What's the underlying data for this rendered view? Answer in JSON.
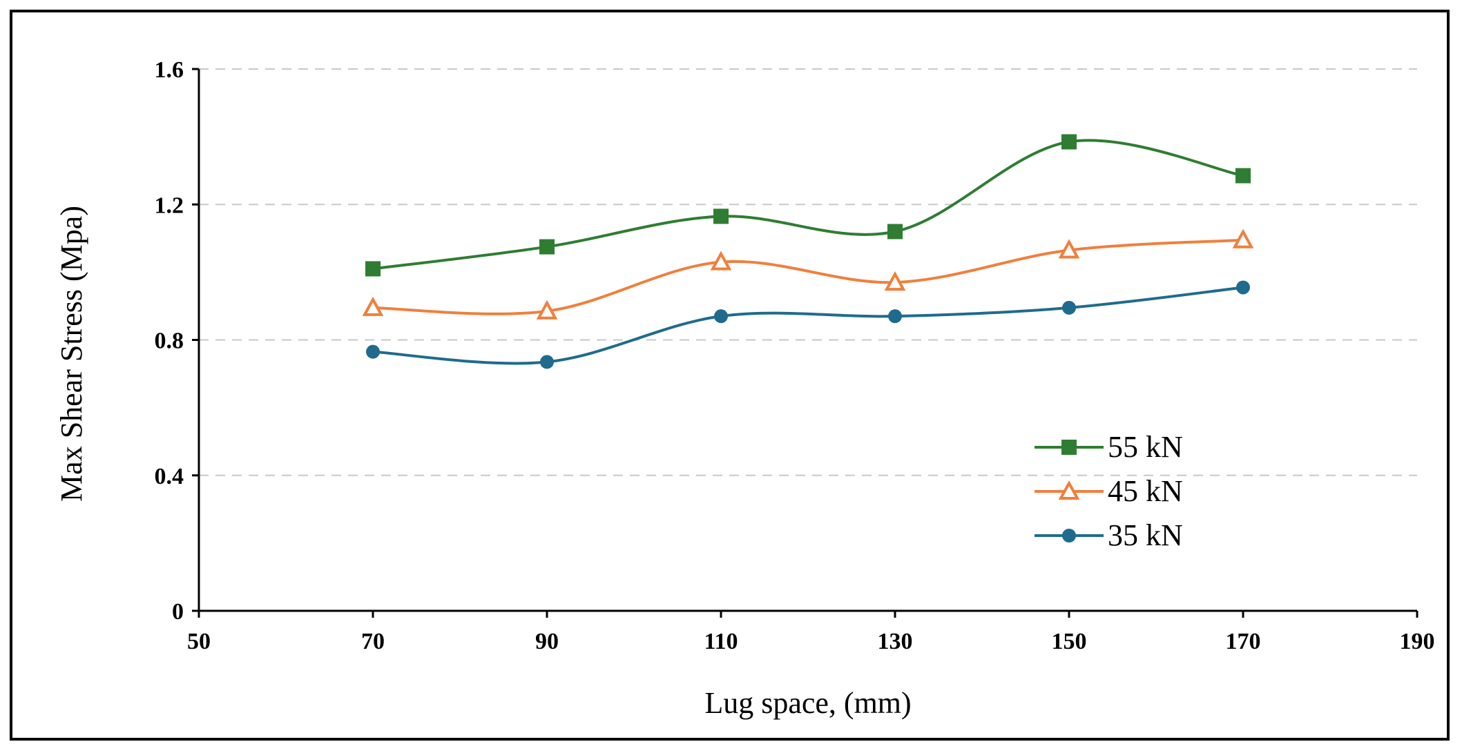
{
  "chart_data": {
    "type": "line",
    "title": "",
    "xlabel": "Lug space, (mm)",
    "ylabel": "Max Shear Stress (Mpa)",
    "xlim": [
      50,
      190
    ],
    "ylim": [
      0,
      1.6
    ],
    "x_ticks": [
      50,
      70,
      90,
      110,
      130,
      150,
      170,
      190
    ],
    "y_ticks": [
      0,
      0.4,
      0.8,
      1.2,
      1.6
    ],
    "y_tick_labels": [
      "0",
      "0.4",
      "0.8",
      "1.2",
      "1.6"
    ],
    "grid": "horizontal dashed",
    "legend_position": "lower-right",
    "smooth": true,
    "x": [
      70,
      90,
      110,
      130,
      150,
      170
    ],
    "series": [
      {
        "name": "55 kN",
        "color": "#2e7d32",
        "marker": "square",
        "values": [
          1.01,
          1.075,
          1.165,
          1.12,
          1.385,
          1.285
        ]
      },
      {
        "name": "45 kN",
        "color": "#f07f3c",
        "marker": "triangle",
        "values": [
          0.895,
          0.885,
          1.03,
          0.97,
          1.065,
          1.095
        ]
      },
      {
        "name": "35 kN",
        "color": "#1f6b8e",
        "marker": "circle",
        "values": [
          0.765,
          0.735,
          0.87,
          0.87,
          0.895,
          0.955
        ]
      }
    ]
  }
}
